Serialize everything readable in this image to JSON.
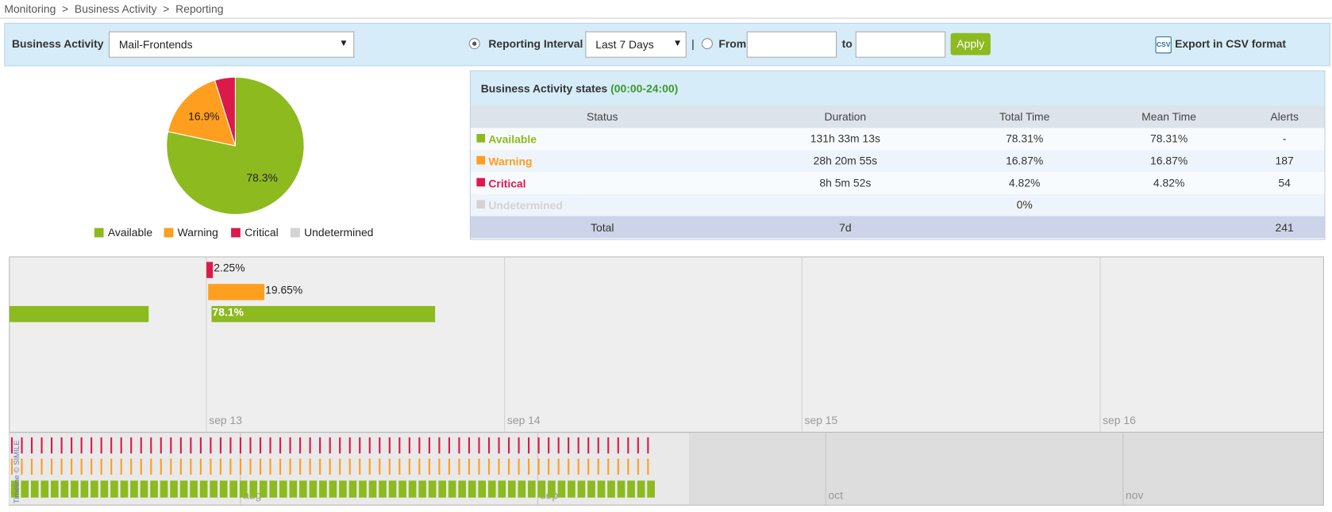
{
  "breadcrumb": {
    "items": [
      "Monitoring",
      "Business Activity",
      "Reporting"
    ],
    "separator": ">"
  },
  "toolbar": {
    "business_activity_label": "Business Activity",
    "business_activity_value": "Mail-Frontends",
    "reporting_interval_label": "Reporting Interval",
    "interval_value": "Last 7 Days",
    "divider": "|",
    "from_label": "From",
    "to_label": "to",
    "apply": "Apply",
    "csv_icon": "CSV",
    "export": "Export in CSV format"
  },
  "chart_data": [
    {
      "type": "pie",
      "categories": [
        "Available",
        "Warning",
        "Critical",
        "Undetermined"
      ],
      "values": [
        78.31,
        16.87,
        4.82,
        0
      ],
      "value_labels": [
        "78.3%",
        "16.9%",
        null,
        null
      ],
      "colors": [
        "#8cba1f",
        "#ff9e1f",
        "#dc1a4a",
        "#d3d3d3"
      ],
      "legend": "bottom"
    },
    {
      "type": "bar",
      "orientation": "horizontal",
      "values": [
        2.25,
        19.65,
        78.1
      ],
      "value_labels": [
        "2.25%",
        "19.65%",
        "78.1%"
      ],
      "colors": [
        "#dc1a4a",
        "#ff9e1f",
        "#8cba1f"
      ],
      "x_labels": [
        "sep 13",
        "sep 14",
        "sep 15",
        "sep 16"
      ],
      "overview_labels": [
        "aug",
        "sep",
        "oct",
        "nov"
      ],
      "credit": "Timeline © SIMILE"
    }
  ],
  "table": {
    "title": "Business Activity states",
    "interval": "(00:00-24:00)",
    "columns": [
      "Status",
      "Duration",
      "Total Time",
      "Mean Time",
      "Alerts"
    ],
    "rows": [
      [
        "Available",
        "131h 33m 13s",
        "78.31%",
        "78.31%",
        "-"
      ],
      [
        "Warning",
        "28h 20m 55s",
        "16.87%",
        "16.87%",
        "187"
      ],
      [
        "Critical",
        "8h 5m 52s",
        "4.82%",
        "4.82%",
        "54"
      ],
      [
        "Undetermined",
        null,
        "0%",
        null,
        null
      ]
    ],
    "total": [
      "Total",
      "7d",
      null,
      null,
      "241"
    ]
  }
}
